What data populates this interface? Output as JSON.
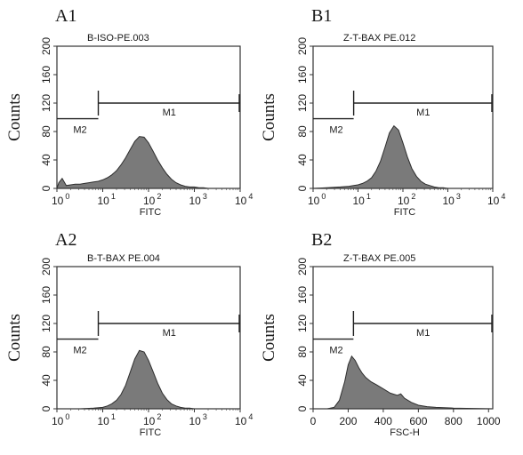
{
  "chart_data": [
    {
      "panel": "A1",
      "type": "area",
      "title": "B-ISO-PE.003",
      "ylabel": "Counts",
      "xlabel": "FITC",
      "x_scale": "log",
      "xlim": [
        1,
        10000
      ],
      "ylim": [
        0,
        200
      ],
      "yticks": [
        0,
        40,
        80,
        120,
        160,
        200
      ],
      "x_tick_bases": [
        "10",
        "10",
        "10",
        "10",
        "10"
      ],
      "x_tick_exponents": [
        "0",
        "1",
        "2",
        "3",
        "4"
      ],
      "color": "#7a7a7a",
      "x": [
        1,
        1.1,
        1.3,
        1.6,
        2,
        2.5,
        3.2,
        4,
        5,
        6.3,
        8,
        10,
        12.6,
        15.8,
        20,
        25,
        31.6,
        40,
        50,
        63,
        80,
        100,
        126,
        158,
        200,
        251,
        316,
        398,
        501,
        631,
        794,
        1000,
        1260,
        1585,
        2000,
        3162,
        5012,
        10000
      ],
      "y": [
        0,
        8,
        14,
        4,
        5,
        6,
        6,
        7,
        8,
        9,
        10,
        12,
        15,
        19,
        25,
        33,
        43,
        55,
        66,
        73,
        72,
        64,
        52,
        40,
        29,
        20,
        13,
        8,
        5,
        3,
        2,
        2,
        1,
        1,
        0,
        0,
        0,
        0
      ],
      "markers": [
        {
          "name": "M1",
          "range": [
            8,
            10000
          ],
          "level": 120
        },
        {
          "name": "M2",
          "range": [
            1,
            8
          ],
          "level": 98
        }
      ]
    },
    {
      "panel": "B1",
      "type": "area",
      "title": "Z-T-BAX PE.012",
      "ylabel": "Counts",
      "xlabel": "FITC",
      "x_scale": "log",
      "xlim": [
        1,
        10000
      ],
      "ylim": [
        0,
        200
      ],
      "yticks": [
        0,
        40,
        80,
        120,
        160,
        200
      ],
      "x_tick_bases": [
        "10",
        "10",
        "10",
        "10",
        "10"
      ],
      "x_tick_exponents": [
        "0",
        "1",
        "2",
        "3",
        "4"
      ],
      "color": "#7a7a7a",
      "x": [
        1,
        2,
        4,
        6.3,
        8,
        10,
        12.6,
        15.8,
        20,
        25,
        31.6,
        40,
        50,
        63,
        80,
        100,
        126,
        158,
        200,
        251,
        316,
        398,
        501,
        631,
        794,
        1000,
        2000,
        5012,
        10000
      ],
      "y": [
        0,
        1,
        2,
        3,
        4,
        5,
        7,
        10,
        15,
        24,
        38,
        58,
        78,
        88,
        82,
        64,
        44,
        28,
        17,
        10,
        6,
        4,
        2,
        1,
        1,
        0,
        0,
        0,
        0
      ],
      "markers": [
        {
          "name": "M1",
          "range": [
            8,
            10000
          ],
          "level": 120
        },
        {
          "name": "M2",
          "range": [
            1,
            8
          ],
          "level": 98
        }
      ]
    },
    {
      "panel": "A2",
      "type": "area",
      "title": "B-T-BAX PE.004",
      "ylabel": "Counts",
      "xlabel": "FITC",
      "x_scale": "log",
      "xlim": [
        1,
        10000
      ],
      "ylim": [
        0,
        200
      ],
      "yticks": [
        0,
        40,
        80,
        120,
        160,
        200
      ],
      "x_tick_bases": [
        "10",
        "10",
        "10",
        "10",
        "10"
      ],
      "x_tick_exponents": [
        "0",
        "1",
        "2",
        "3",
        "4"
      ],
      "color": "#7a7a7a",
      "x": [
        1,
        3.2,
        6.3,
        10,
        12.6,
        15.8,
        20,
        25,
        31.6,
        40,
        50,
        63,
        80,
        100,
        126,
        158,
        200,
        251,
        316,
        398,
        501,
        631,
        794,
        1000,
        2000,
        5012,
        10000
      ],
      "y": [
        0,
        0,
        1,
        2,
        4,
        7,
        12,
        20,
        33,
        52,
        70,
        82,
        80,
        68,
        52,
        36,
        22,
        13,
        7,
        4,
        2,
        1,
        1,
        0,
        0,
        0,
        0
      ],
      "markers": [
        {
          "name": "M1",
          "range": [
            8,
            10000
          ],
          "level": 120
        },
        {
          "name": "M2",
          "range": [
            1,
            8
          ],
          "level": 98
        }
      ]
    },
    {
      "panel": "B2",
      "type": "area",
      "title": "Z-T-BAX PE.005",
      "ylabel": "Counts",
      "xlabel": "FSC-H",
      "x_scale": "linear",
      "xlim": [
        0,
        1024
      ],
      "ylim": [
        0,
        200
      ],
      "yticks": [
        0,
        40,
        80,
        120,
        160,
        200
      ],
      "xticks": [
        0,
        200,
        400,
        600,
        800,
        1000
      ],
      "color": "#7a7a7a",
      "x": [
        0,
        80,
        120,
        150,
        180,
        200,
        220,
        240,
        260,
        280,
        300,
        330,
        360,
        400,
        440,
        480,
        500,
        520,
        560,
        600,
        650,
        700,
        800,
        1024
      ],
      "y": [
        0,
        0,
        2,
        12,
        38,
        62,
        74,
        68,
        58,
        50,
        44,
        38,
        34,
        28,
        22,
        19,
        21,
        15,
        9,
        5,
        3,
        2,
        1,
        0
      ],
      "markers": [
        {
          "name": "M1",
          "range": [
            230,
            1024
          ],
          "level": 120
        },
        {
          "name": "M2",
          "range": [
            0,
            230
          ],
          "level": 98
        }
      ]
    }
  ]
}
